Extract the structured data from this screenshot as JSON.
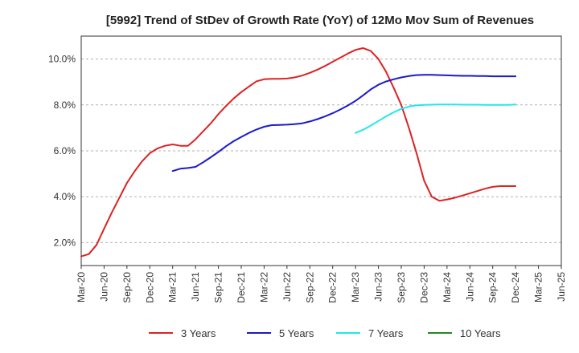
{
  "chart_data": {
    "type": "line",
    "title": "[5992]  Trend of StDev of Growth Rate (YoY) of 12Mo Mov Sum of Revenues",
    "xlabel": "",
    "ylabel": "",
    "ylim": [
      1.0,
      11.0
    ],
    "y_ticks": [
      2.0,
      4.0,
      6.0,
      8.0,
      10.0
    ],
    "y_tick_labels": [
      "2.0%",
      "4.0%",
      "6.0%",
      "8.0%",
      "10.0%"
    ],
    "x_ticks": [
      "Mar-20",
      "Jun-20",
      "Sep-20",
      "Dec-20",
      "Mar-21",
      "Jun-21",
      "Sep-21",
      "Dec-21",
      "Mar-22",
      "Jun-22",
      "Sep-22",
      "Dec-22",
      "Mar-23",
      "Jun-23",
      "Sep-23",
      "Dec-23",
      "Mar-24",
      "Jun-24",
      "Sep-24",
      "Dec-24",
      "Mar-25",
      "Jun-25"
    ],
    "grid": "horizontal dashed",
    "legend_position": "bottom",
    "series": [
      {
        "name": "3 Years",
        "color": "#dd2222",
        "start_month_index": 0,
        "values": [
          1.4,
          1.5,
          1.9,
          2.6,
          3.3,
          3.95,
          4.6,
          5.1,
          5.55,
          5.9,
          6.1,
          6.22,
          6.28,
          6.22,
          6.22,
          6.5,
          6.85,
          7.2,
          7.6,
          7.95,
          8.28,
          8.56,
          8.8,
          9.03,
          9.12,
          9.14,
          9.14,
          9.15,
          9.2,
          9.28,
          9.4,
          9.54,
          9.7,
          9.88,
          10.06,
          10.24,
          10.4,
          10.48,
          10.35,
          10.0,
          9.45,
          8.75,
          8.0,
          7.0,
          5.9,
          4.7,
          4.0,
          3.82,
          3.88,
          3.95,
          4.05,
          4.15,
          4.25,
          4.35,
          4.43,
          4.46,
          4.46,
          4.46
        ]
      },
      {
        "name": "5 Years",
        "color": "#1a1acc",
        "start_month_index": 12,
        "values": [
          5.12,
          5.22,
          5.25,
          5.3,
          5.5,
          5.72,
          5.95,
          6.2,
          6.42,
          6.6,
          6.78,
          6.93,
          7.05,
          7.12,
          7.13,
          7.14,
          7.16,
          7.2,
          7.28,
          7.38,
          7.5,
          7.64,
          7.8,
          7.98,
          8.18,
          8.42,
          8.68,
          8.88,
          9.02,
          9.12,
          9.2,
          9.26,
          9.3,
          9.31,
          9.31,
          9.3,
          9.29,
          9.28,
          9.27,
          9.27,
          9.26,
          9.26,
          9.25,
          9.25,
          9.25,
          9.25
        ]
      },
      {
        "name": "7 Years",
        "color": "#22e8e8",
        "start_month_index": 36,
        "values": [
          6.78,
          6.92,
          7.1,
          7.3,
          7.5,
          7.68,
          7.83,
          7.93,
          7.98,
          8.0,
          8.01,
          8.02,
          8.02,
          8.02,
          8.01,
          8.01,
          8.01,
          8.0,
          8.0,
          8.0,
          8.0,
          8.02
        ]
      },
      {
        "name": "10 Years",
        "color": "#228822",
        "start_month_index": 0,
        "values": []
      }
    ]
  }
}
